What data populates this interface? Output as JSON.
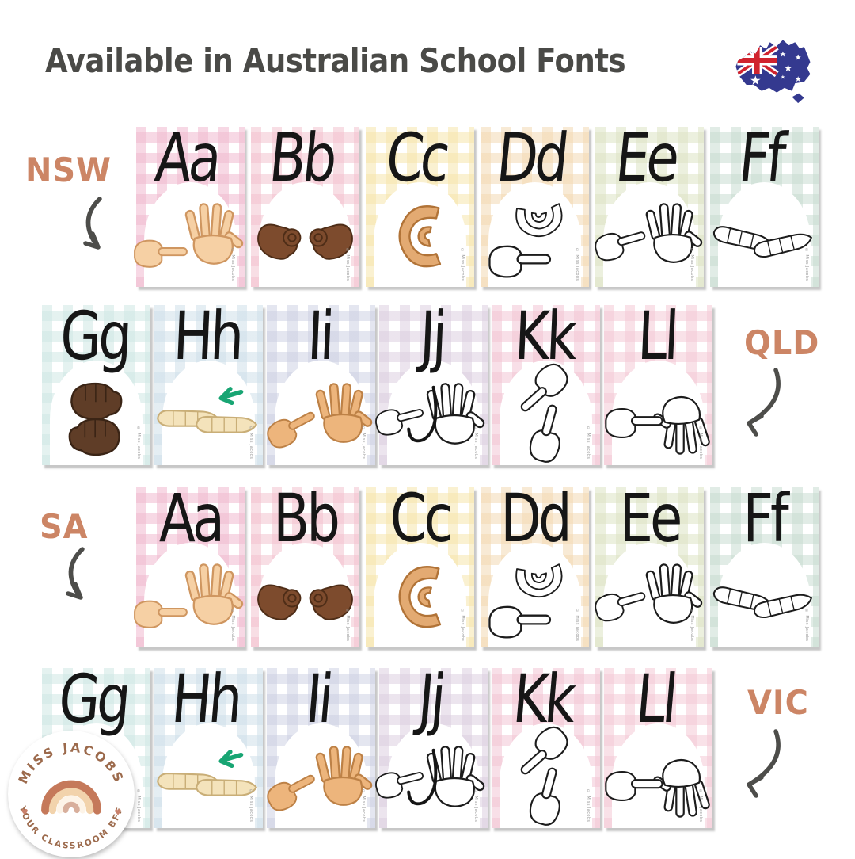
{
  "title": "Available in Australian School Fonts",
  "flag_icon": "australia-flag-map-icon",
  "colors": {
    "title_text": "#4a4a47",
    "state_label": "#cc8565",
    "arrow": "#4d4d4a",
    "flag_navy": "#34398f",
    "flag_red": "#d0232e",
    "letter_text": "#161616",
    "h_arrow_green": "#18a573"
  },
  "credit_text": "© Miss Jacobs",
  "skins": {
    "light": {
      "fill": "#f6d0a4",
      "line": "#cf9660"
    },
    "dark": {
      "fill": "#7d4b2d",
      "line": "#4e2d17"
    },
    "medium": {
      "fill": "#e3aa72",
      "line": "#b17337"
    },
    "outline": {
      "fill": "#ffffff",
      "line": "#1c1c1c"
    },
    "darkest": {
      "fill": "#5f3d27",
      "line": "#3a2415"
    },
    "pale": {
      "fill": "#f4e3bb",
      "line": "#c9ae77"
    },
    "tan": {
      "fill": "#edb57c",
      "line": "#bd8146"
    }
  },
  "rows": [
    {
      "state": "NSW",
      "label_side": "left",
      "arrow_direction": "down-right",
      "cards": [
        {
          "letters": "Aa",
          "color": "#f0b9cf",
          "sign": "auslan-a",
          "skin": "light"
        },
        {
          "letters": "Bb",
          "color": "#f3c2cf",
          "sign": "auslan-b",
          "skin": "dark"
        },
        {
          "letters": "Cc",
          "color": "#f6e5ab",
          "sign": "auslan-c",
          "skin": "medium"
        },
        {
          "letters": "Dd",
          "color": "#f3d9b3",
          "sign": "auslan-d",
          "skin": "outline"
        },
        {
          "letters": "Ee",
          "color": "#dde3c4",
          "sign": "auslan-e",
          "skin": "outline"
        },
        {
          "letters": "Ff",
          "color": "#c8dcd1",
          "sign": "auslan-f",
          "skin": "outline"
        }
      ]
    },
    {
      "state": "QLD",
      "label_side": "right",
      "arrow_direction": "down-left",
      "cards": [
        {
          "letters": "Gg",
          "color": "#cfe7e4",
          "sign": "auslan-g",
          "skin": "darkest"
        },
        {
          "letters": "Hh",
          "color": "#cfdfe9",
          "sign": "auslan-h",
          "skin": "pale"
        },
        {
          "letters": "Ii",
          "color": "#cdd1e3",
          "sign": "auslan-i",
          "skin": "tan"
        },
        {
          "letters": "Jj",
          "color": "#dccfe0",
          "sign": "auslan-j",
          "skin": "outline"
        },
        {
          "letters": "Kk",
          "color": "#f2c5d4",
          "sign": "auslan-k",
          "skin": "outline"
        },
        {
          "letters": "Ll",
          "color": "#f4c9d5",
          "sign": "auslan-l",
          "skin": "outline"
        }
      ]
    },
    {
      "state": "SA",
      "label_side": "left",
      "arrow_direction": "down-right",
      "cards": [
        {
          "letters": "Aa",
          "color": "#f0b9cf",
          "sign": "auslan-a",
          "skin": "light"
        },
        {
          "letters": "Bb",
          "color": "#f3c2cf",
          "sign": "auslan-b",
          "skin": "dark"
        },
        {
          "letters": "Cc",
          "color": "#f6e5ab",
          "sign": "auslan-c",
          "skin": "medium"
        },
        {
          "letters": "Dd",
          "color": "#f3d9b3",
          "sign": "auslan-d",
          "skin": "outline"
        },
        {
          "letters": "Ee",
          "color": "#dde3c4",
          "sign": "auslan-e",
          "skin": "outline"
        },
        {
          "letters": "Ff",
          "color": "#c8dcd1",
          "sign": "auslan-f",
          "skin": "outline"
        }
      ]
    },
    {
      "state": "VIC",
      "label_side": "right",
      "arrow_direction": "down-left",
      "cards": [
        {
          "letters": "Gg",
          "color": "#cfe7e4",
          "sign": "auslan-g",
          "skin": "darkest"
        },
        {
          "letters": "Hh",
          "color": "#cfdfe9",
          "sign": "auslan-h",
          "skin": "pale"
        },
        {
          "letters": "Ii",
          "color": "#cdd1e3",
          "sign": "auslan-i",
          "skin": "tan"
        },
        {
          "letters": "Jj",
          "color": "#dccfe0",
          "sign": "auslan-j",
          "skin": "outline"
        },
        {
          "letters": "Kk",
          "color": "#f2c5d4",
          "sign": "auslan-k",
          "skin": "outline"
        },
        {
          "letters": "Ll",
          "color": "#f4c9d5",
          "sign": "auslan-l",
          "skin": "outline"
        }
      ]
    }
  ],
  "logo": {
    "top_text": "MISS JACOBS",
    "bottom_text": "YOUR CLASSROOM BFF",
    "icon": "boho-rainbow-icon",
    "text_color": "#9c6a4c",
    "heart_color": "#c9806a",
    "rainbow_colors": [
      "#c5795a",
      "#f2d3ac",
      "#fdf4e8",
      "#d8af9c"
    ]
  }
}
